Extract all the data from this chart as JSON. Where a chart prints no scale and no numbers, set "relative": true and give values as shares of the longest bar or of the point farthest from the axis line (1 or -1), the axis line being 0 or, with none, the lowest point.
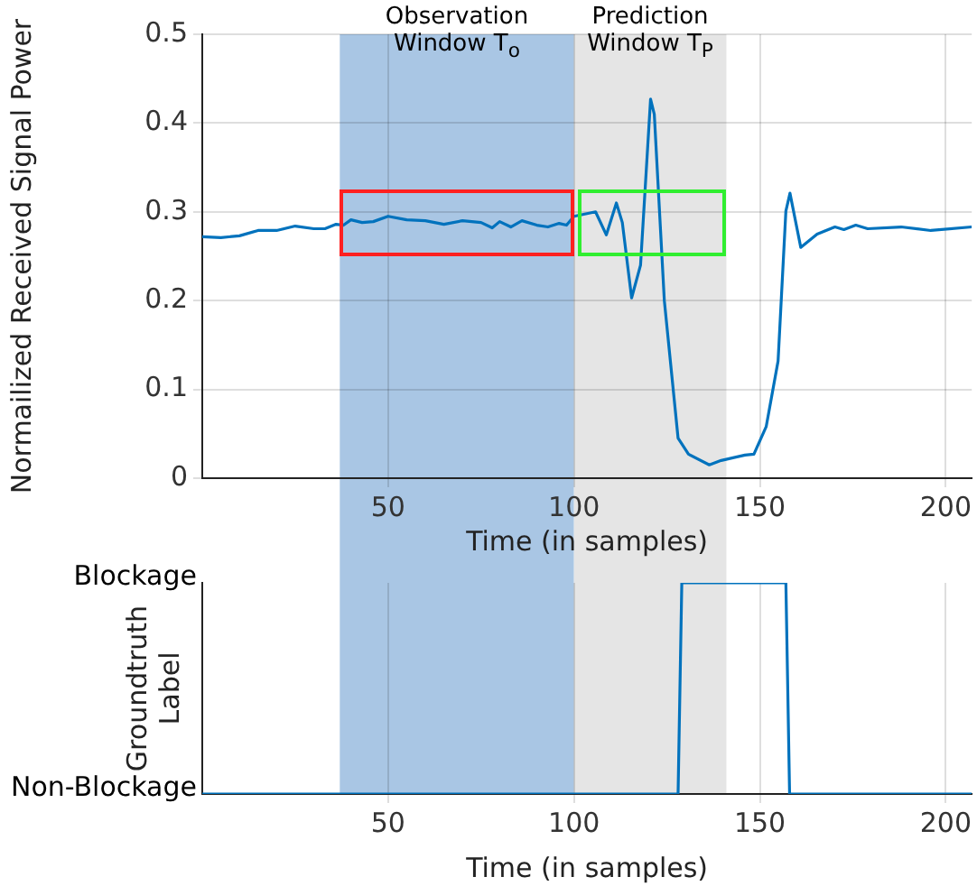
{
  "chart_data": [
    {
      "type": "line",
      "xlabel": "Time (in samples)",
      "ylabel": "Normailized Received Signal Power",
      "x": [
        0,
        5,
        10,
        15,
        20,
        25,
        30,
        33,
        36,
        38,
        40,
        43,
        46,
        50,
        55,
        60,
        65,
        70,
        75,
        78,
        80,
        83,
        86,
        90,
        93,
        96,
        98,
        100,
        105.8,
        108.7,
        111.4,
        113,
        115.5,
        117.9,
        120.6,
        121.6,
        124.3,
        128,
        130.8,
        136.4,
        139.6,
        146,
        148.4,
        151.7,
        154.9,
        157,
        158.1,
        161,
        165.4,
        170.2,
        172.6,
        175.8,
        179,
        188,
        196,
        207
      ],
      "series": [
        {
          "color": "#0072bd",
          "values": [
            0.272,
            0.271,
            0.273,
            0.279,
            0.279,
            0.284,
            0.281,
            0.281,
            0.286,
            0.285,
            0.291,
            0.288,
            0.289,
            0.295,
            0.291,
            0.29,
            0.286,
            0.29,
            0.288,
            0.282,
            0.289,
            0.283,
            0.29,
            0.285,
            0.283,
            0.287,
            0.285,
            0.295,
            0.3,
            0.274,
            0.31,
            0.288,
            0.203,
            0.24,
            0.427,
            0.41,
            0.2,
            0.045,
            0.027,
            0.015,
            0.02,
            0.026,
            0.027,
            0.058,
            0.132,
            0.301,
            0.321,
            0.26,
            0.275,
            0.283,
            0.28,
            0.285,
            0.281,
            0.283,
            0.279,
            0.283
          ]
        }
      ],
      "xlim": [
        0,
        207
      ],
      "xticks": [
        50,
        100,
        150,
        200
      ],
      "ylim": [
        0,
        0.5
      ],
      "yticks": [
        0,
        0.1,
        0.2,
        0.3,
        0.4,
        0.5
      ],
      "grid": true,
      "marker": "none",
      "line_style": "solid",
      "bands": [
        {
          "axis": "x",
          "from": 37,
          "to": 100,
          "label": "Observation Window T$_{o}$",
          "color": "#a9c6e4"
        },
        {
          "axis": "x",
          "from": 100,
          "to": 141,
          "label": "Prediction Window T$_{P}$",
          "color": "#e5e5e5"
        }
      ]
    },
    {
      "type": "line",
      "xlabel": "Time (in samples)",
      "ylabel": "Groundtruth Label",
      "x": [
        0,
        128,
        129,
        157,
        158,
        207
      ],
      "series": [
        {
          "color": "#0072bd",
          "values": [
            0,
            0,
            1,
            1,
            0,
            0
          ]
        }
      ],
      "xlim": [
        0,
        207
      ],
      "xticks": [
        50,
        100,
        150,
        200
      ],
      "relative": true,
      "annotations": [
        "Non-Blockage",
        "Blockage"
      ],
      "grid": "x",
      "marker": "none",
      "line_style": "solid",
      "bands": [
        {
          "axis": "x",
          "from": 37,
          "to": 100,
          "color": "#a9c6e4"
        },
        {
          "axis": "x",
          "from": 100,
          "to": 141,
          "color": "#e5e5e5"
        }
      ]
    }
  ]
}
